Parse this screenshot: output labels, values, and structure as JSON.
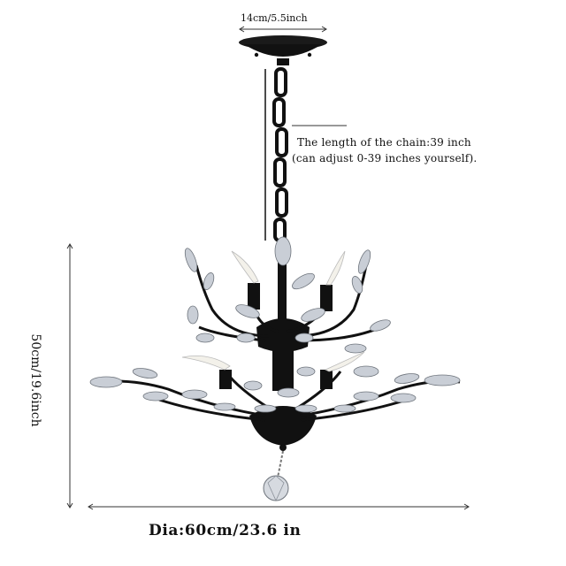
{
  "dimensions": {
    "canopy": "14cm/5.5inch",
    "chain_length": "The length of the chain:39 inch",
    "chain_adjust": "(can adjust 0-39 inches yourself).",
    "height": "50cm/19.6inch",
    "diameter": "Dia:60cm/23.6 in"
  },
  "colors": {
    "metal": "#111111",
    "crystal": "#c9ced6",
    "candle": "#f3f1ea",
    "line": "#333333"
  }
}
